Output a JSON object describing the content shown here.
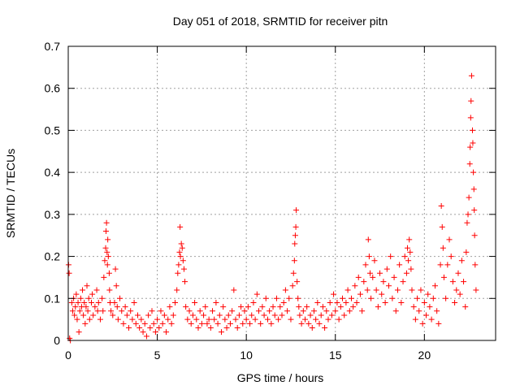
{
  "chart_data": {
    "type": "scatter",
    "title": "Day 051 of 2018, SRMTID for receiver pitn",
    "xlabel": "GPS time / hours",
    "ylabel": "SRMTID / TECUs",
    "xlim": [
      0,
      24
    ],
    "ylim": [
      0,
      0.7
    ],
    "xticks": [
      0,
      5,
      10,
      15,
      20
    ],
    "xtick_labels": [
      "0",
      "5",
      "10",
      "15",
      "20"
    ],
    "yticks": [
      0,
      0.1,
      0.2,
      0.3,
      0.4,
      0.5,
      0.6,
      0.7
    ],
    "ytick_labels": [
      "0",
      "0.1",
      "0.2",
      "0.3",
      "0.4",
      "0.5",
      "0.6",
      "0.7"
    ],
    "grid": true,
    "marker": "+",
    "color": "#ff0000",
    "series": [
      {
        "name": "SRMTID",
        "points": [
          [
            0.02,
            0.18
          ],
          [
            0.05,
            0.16
          ],
          [
            0.08,
            0.005
          ],
          [
            0.12,
            0.0
          ],
          [
            0.2,
            0.09
          ],
          [
            0.25,
            0.07
          ],
          [
            0.3,
            0.1
          ],
          [
            0.35,
            0.06
          ],
          [
            0.4,
            0.08
          ],
          [
            0.45,
            0.11
          ],
          [
            0.5,
            0.05
          ],
          [
            0.55,
            0.09
          ],
          [
            0.6,
            0.02
          ],
          [
            0.65,
            0.07
          ],
          [
            0.7,
            0.1
          ],
          [
            0.75,
            0.08
          ],
          [
            0.8,
            0.12
          ],
          [
            0.85,
            0.06
          ],
          [
            0.9,
            0.09
          ],
          [
            0.95,
            0.04
          ],
          [
            1.0,
            0.08
          ],
          [
            1.05,
            0.13
          ],
          [
            1.1,
            0.07
          ],
          [
            1.15,
            0.1
          ],
          [
            1.2,
            0.05
          ],
          [
            1.3,
            0.09
          ],
          [
            1.35,
            0.11
          ],
          [
            1.4,
            0.06
          ],
          [
            1.5,
            0.08
          ],
          [
            1.6,
            0.12
          ],
          [
            1.65,
            0.07
          ],
          [
            1.7,
            0.09
          ],
          [
            1.8,
            0.05
          ],
          [
            1.9,
            0.1
          ],
          [
            1.95,
            0.07
          ],
          [
            2.0,
            0.15
          ],
          [
            2.05,
            0.19
          ],
          [
            2.1,
            0.22
          ],
          [
            2.12,
            0.26
          ],
          [
            2.15,
            0.28
          ],
          [
            2.18,
            0.21
          ],
          [
            2.2,
            0.18
          ],
          [
            2.22,
            0.24
          ],
          [
            2.25,
            0.2
          ],
          [
            2.3,
            0.16
          ],
          [
            2.32,
            0.12
          ],
          [
            2.35,
            0.09
          ],
          [
            2.4,
            0.07
          ],
          [
            2.5,
            0.06
          ],
          [
            2.6,
            0.09
          ],
          [
            2.65,
            0.17
          ],
          [
            2.7,
            0.13
          ],
          [
            2.75,
            0.08
          ],
          [
            2.8,
            0.05
          ],
          [
            2.9,
            0.1
          ],
          [
            3.0,
            0.07
          ],
          [
            3.1,
            0.04
          ],
          [
            3.2,
            0.08
          ],
          [
            3.3,
            0.06
          ],
          [
            3.4,
            0.03
          ],
          [
            3.5,
            0.07
          ],
          [
            3.6,
            0.05
          ],
          [
            3.7,
            0.09
          ],
          [
            3.8,
            0.04
          ],
          [
            3.9,
            0.06
          ],
          [
            4.0,
            0.03
          ],
          [
            4.1,
            0.05
          ],
          [
            4.2,
            0.02
          ],
          [
            4.3,
            0.04
          ],
          [
            4.4,
            0.01
          ],
          [
            4.5,
            0.06
          ],
          [
            4.6,
            0.03
          ],
          [
            4.7,
            0.07
          ],
          [
            4.8,
            0.04
          ],
          [
            4.9,
            0.02
          ],
          [
            5.0,
            0.05
          ],
          [
            5.1,
            0.03
          ],
          [
            5.2,
            0.07
          ],
          [
            5.3,
            0.04
          ],
          [
            5.4,
            0.06
          ],
          [
            5.5,
            0.02
          ],
          [
            5.6,
            0.05
          ],
          [
            5.7,
            0.08
          ],
          [
            5.8,
            0.04
          ],
          [
            5.9,
            0.06
          ],
          [
            6.0,
            0.09
          ],
          [
            6.1,
            0.12
          ],
          [
            6.15,
            0.16
          ],
          [
            6.2,
            0.18
          ],
          [
            6.25,
            0.21
          ],
          [
            6.28,
            0.27
          ],
          [
            6.3,
            0.2
          ],
          [
            6.35,
            0.23
          ],
          [
            6.4,
            0.22
          ],
          [
            6.45,
            0.19
          ],
          [
            6.5,
            0.17
          ],
          [
            6.55,
            0.14
          ],
          [
            6.6,
            0.08
          ],
          [
            6.7,
            0.05
          ],
          [
            6.8,
            0.07
          ],
          [
            6.9,
            0.04
          ],
          [
            7.0,
            0.06
          ],
          [
            7.1,
            0.09
          ],
          [
            7.2,
            0.05
          ],
          [
            7.3,
            0.03
          ],
          [
            7.4,
            0.07
          ],
          [
            7.5,
            0.04
          ],
          [
            7.6,
            0.06
          ],
          [
            7.7,
            0.08
          ],
          [
            7.8,
            0.04
          ],
          [
            7.9,
            0.05
          ],
          [
            8.0,
            0.03
          ],
          [
            8.1,
            0.07
          ],
          [
            8.2,
            0.05
          ],
          [
            8.3,
            0.09
          ],
          [
            8.4,
            0.04
          ],
          [
            8.5,
            0.06
          ],
          [
            8.6,
            0.02
          ],
          [
            8.7,
            0.08
          ],
          [
            8.8,
            0.05
          ],
          [
            8.9,
            0.03
          ],
          [
            9.0,
            0.06
          ],
          [
            9.1,
            0.04
          ],
          [
            9.2,
            0.07
          ],
          [
            9.3,
            0.12
          ],
          [
            9.4,
            0.05
          ],
          [
            9.5,
            0.03
          ],
          [
            9.6,
            0.06
          ],
          [
            9.7,
            0.08
          ],
          [
            9.8,
            0.04
          ],
          [
            9.9,
            0.07
          ],
          [
            10.0,
            0.05
          ],
          [
            10.1,
            0.08
          ],
          [
            10.2,
            0.04
          ],
          [
            10.3,
            0.06
          ],
          [
            10.4,
            0.09
          ],
          [
            10.5,
            0.05
          ],
          [
            10.6,
            0.11
          ],
          [
            10.7,
            0.07
          ],
          [
            10.8,
            0.04
          ],
          [
            10.9,
            0.08
          ],
          [
            11.0,
            0.06
          ],
          [
            11.1,
            0.1
          ],
          [
            11.2,
            0.05
          ],
          [
            11.3,
            0.07
          ],
          [
            11.4,
            0.04
          ],
          [
            11.5,
            0.08
          ],
          [
            11.6,
            0.06
          ],
          [
            11.7,
            0.1
          ],
          [
            11.8,
            0.05
          ],
          [
            11.9,
            0.08
          ],
          [
            12.0,
            0.06
          ],
          [
            12.1,
            0.09
          ],
          [
            12.2,
            0.12
          ],
          [
            12.3,
            0.07
          ],
          [
            12.4,
            0.1
          ],
          [
            12.5,
            0.05
          ],
          [
            12.6,
            0.13
          ],
          [
            12.65,
            0.16
          ],
          [
            12.7,
            0.19
          ],
          [
            12.72,
            0.23
          ],
          [
            12.75,
            0.25
          ],
          [
            12.78,
            0.27
          ],
          [
            12.8,
            0.31
          ],
          [
            12.85,
            0.14
          ],
          [
            12.9,
            0.1
          ],
          [
            12.95,
            0.08
          ],
          [
            13.0,
            0.06
          ],
          [
            13.1,
            0.04
          ],
          [
            13.2,
            0.07
          ],
          [
            13.3,
            0.05
          ],
          [
            13.4,
            0.08
          ],
          [
            13.5,
            0.04
          ],
          [
            13.6,
            0.06
          ],
          [
            13.7,
            0.03
          ],
          [
            13.8,
            0.07
          ],
          [
            13.9,
            0.05
          ],
          [
            14.0,
            0.09
          ],
          [
            14.1,
            0.04
          ],
          [
            14.2,
            0.06
          ],
          [
            14.3,
            0.08
          ],
          [
            14.4,
            0.03
          ],
          [
            14.5,
            0.07
          ],
          [
            14.6,
            0.05
          ],
          [
            14.7,
            0.09
          ],
          [
            14.8,
            0.06
          ],
          [
            14.9,
            0.11
          ],
          [
            15.0,
            0.07
          ],
          [
            15.1,
            0.09
          ],
          [
            15.2,
            0.05
          ],
          [
            15.3,
            0.08
          ],
          [
            15.4,
            0.1
          ],
          [
            15.5,
            0.06
          ],
          [
            15.6,
            0.09
          ],
          [
            15.7,
            0.12
          ],
          [
            15.8,
            0.07
          ],
          [
            15.9,
            0.1
          ],
          [
            16.0,
            0.08
          ],
          [
            16.1,
            0.13
          ],
          [
            16.2,
            0.09
          ],
          [
            16.3,
            0.15
          ],
          [
            16.4,
            0.11
          ],
          [
            16.5,
            0.07
          ],
          [
            16.6,
            0.14
          ],
          [
            16.7,
            0.18
          ],
          [
            16.8,
            0.12
          ],
          [
            16.85,
            0.24
          ],
          [
            16.9,
            0.2
          ],
          [
            16.95,
            0.16
          ],
          [
            17.0,
            0.1
          ],
          [
            17.1,
            0.15
          ],
          [
            17.2,
            0.19
          ],
          [
            17.3,
            0.12
          ],
          [
            17.4,
            0.08
          ],
          [
            17.5,
            0.16
          ],
          [
            17.6,
            0.11
          ],
          [
            17.7,
            0.14
          ],
          [
            17.8,
            0.09
          ],
          [
            17.9,
            0.17
          ],
          [
            18.0,
            0.13
          ],
          [
            18.1,
            0.2
          ],
          [
            18.2,
            0.1
          ],
          [
            18.3,
            0.15
          ],
          [
            18.4,
            0.07
          ],
          [
            18.5,
            0.12
          ],
          [
            18.6,
            0.18
          ],
          [
            18.7,
            0.09
          ],
          [
            18.8,
            0.14
          ],
          [
            18.9,
            0.2
          ],
          [
            19.0,
            0.16
          ],
          [
            19.05,
            0.22
          ],
          [
            19.1,
            0.19
          ],
          [
            19.15,
            0.24
          ],
          [
            19.2,
            0.21
          ],
          [
            19.25,
            0.17
          ],
          [
            19.3,
            0.12
          ],
          [
            19.4,
            0.08
          ],
          [
            19.5,
            0.05
          ],
          [
            19.6,
            0.1
          ],
          [
            19.7,
            0.07
          ],
          [
            19.8,
            0.12
          ],
          [
            19.9,
            0.04
          ],
          [
            20.0,
            0.09
          ],
          [
            20.1,
            0.06
          ],
          [
            20.2,
            0.11
          ],
          [
            20.3,
            0.08
          ],
          [
            20.4,
            0.05
          ],
          [
            20.5,
            0.1
          ],
          [
            20.6,
            0.13
          ],
          [
            20.7,
            0.07
          ],
          [
            20.8,
            0.04
          ],
          [
            20.9,
            0.18
          ],
          [
            20.95,
            0.32
          ],
          [
            21.0,
            0.27
          ],
          [
            21.05,
            0.22
          ],
          [
            21.1,
            0.15
          ],
          [
            21.2,
            0.1
          ],
          [
            21.3,
            0.18
          ],
          [
            21.4,
            0.24
          ],
          [
            21.5,
            0.2
          ],
          [
            21.6,
            0.14
          ],
          [
            21.7,
            0.09
          ],
          [
            21.8,
            0.12
          ],
          [
            21.9,
            0.16
          ],
          [
            22.0,
            0.11
          ],
          [
            22.1,
            0.19
          ],
          [
            22.2,
            0.14
          ],
          [
            22.3,
            0.08
          ],
          [
            22.35,
            0.21
          ],
          [
            22.4,
            0.28
          ],
          [
            22.45,
            0.3
          ],
          [
            22.5,
            0.34
          ],
          [
            22.55,
            0.42
          ],
          [
            22.57,
            0.46
          ],
          [
            22.6,
            0.53
          ],
          [
            22.62,
            0.57
          ],
          [
            22.65,
            0.63
          ],
          [
            22.7,
            0.5
          ],
          [
            22.72,
            0.47
          ],
          [
            22.75,
            0.4
          ],
          [
            22.78,
            0.36
          ],
          [
            22.8,
            0.31
          ],
          [
            22.82,
            0.25
          ],
          [
            22.85,
            0.18
          ],
          [
            22.9,
            0.12
          ]
        ]
      }
    ]
  }
}
